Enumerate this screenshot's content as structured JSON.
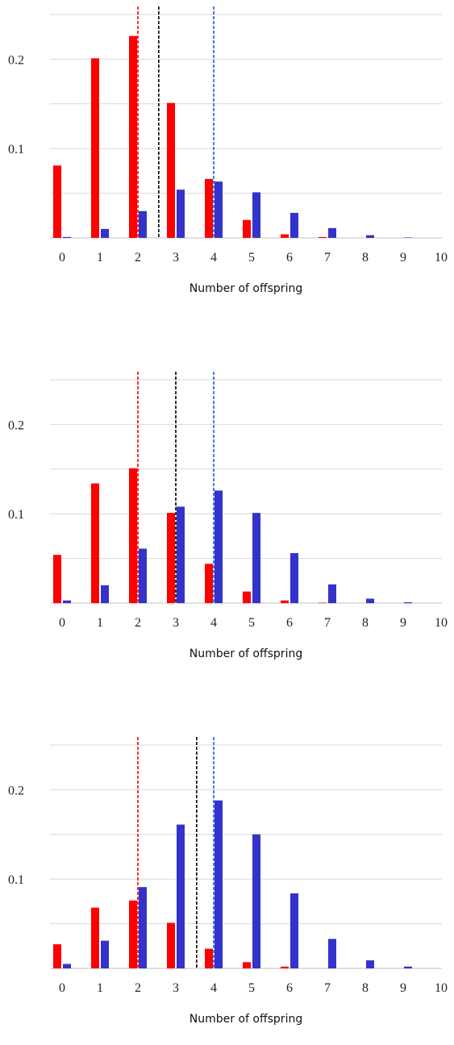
{
  "colors": {
    "red_series": "#ff0000",
    "blue_series": "#3333cc",
    "red_line": "#ff0000",
    "blue_line": "#1f5fd0",
    "black_line": "#000000",
    "grid": "#d9d9d9"
  },
  "chart_data": [
    {
      "type": "bar",
      "xlabel": "Number of offspring",
      "categories": [
        "0",
        "1",
        "2",
        "3",
        "4",
        "5",
        "6",
        "7",
        "8",
        "9",
        "10"
      ],
      "yticks": [
        0.1,
        0.2
      ],
      "ytick_labels": [
        "0.1",
        "0.2"
      ],
      "ylim": [
        0,
        0.25
      ],
      "grid": true,
      "series": [
        {
          "color": "red",
          "values": [
            0.081,
            0.201,
            0.226,
            0.151,
            0.066,
            0.02,
            0.004,
            0.001,
            0.0,
            0.0,
            0.0
          ]
        },
        {
          "color": "blue",
          "values": [
            0.001,
            0.01,
            0.03,
            0.054,
            0.063,
            0.051,
            0.028,
            0.011,
            0.003,
            0.0005,
            0.0
          ]
        }
      ],
      "vlines": [
        {
          "color": "red",
          "x": 2.0
        },
        {
          "color": "black",
          "x": 2.55
        },
        {
          "color": "blue",
          "x": 4.0
        }
      ]
    },
    {
      "type": "bar",
      "xlabel": "Number of offspring",
      "categories": [
        "0",
        "1",
        "2",
        "3",
        "4",
        "5",
        "6",
        "7",
        "8",
        "9",
        "10"
      ],
      "yticks": [
        0.1,
        0.2
      ],
      "ytick_labels": [
        "0.1",
        "0.2"
      ],
      "ylim": [
        0,
        0.25
      ],
      "grid": true,
      "series": [
        {
          "color": "red",
          "values": [
            0.054,
            0.134,
            0.151,
            0.101,
            0.044,
            0.013,
            0.003,
            0.0005,
            0.0,
            0.0,
            0.0
          ]
        },
        {
          "color": "blue",
          "values": [
            0.003,
            0.02,
            0.061,
            0.108,
            0.126,
            0.101,
            0.056,
            0.021,
            0.005,
            0.001,
            0.0
          ]
        }
      ],
      "vlines": [
        {
          "color": "red",
          "x": 2.0
        },
        {
          "color": "black",
          "x": 3.0
        },
        {
          "color": "blue",
          "x": 4.0
        }
      ]
    },
    {
      "type": "bar",
      "xlabel": "Number of offspring",
      "categories": [
        "0",
        "1",
        "2",
        "3",
        "4",
        "5",
        "6",
        "7",
        "8",
        "9",
        "10"
      ],
      "yticks": [
        0.1,
        0.2
      ],
      "ytick_labels": [
        "0.1",
        "0.2"
      ],
      "ylim": [
        0,
        0.25
      ],
      "grid": true,
      "series": [
        {
          "color": "red",
          "values": [
            0.027,
            0.068,
            0.076,
            0.051,
            0.022,
            0.007,
            0.002,
            0.0,
            0.0,
            0.0,
            0.0
          ]
        },
        {
          "color": "blue",
          "values": [
            0.005,
            0.031,
            0.091,
            0.161,
            0.188,
            0.15,
            0.084,
            0.033,
            0.009,
            0.002,
            0.0
          ]
        }
      ],
      "vlines": [
        {
          "color": "red",
          "x": 2.0
        },
        {
          "color": "black",
          "x": 3.55
        },
        {
          "color": "blue",
          "x": 4.0
        }
      ]
    }
  ]
}
